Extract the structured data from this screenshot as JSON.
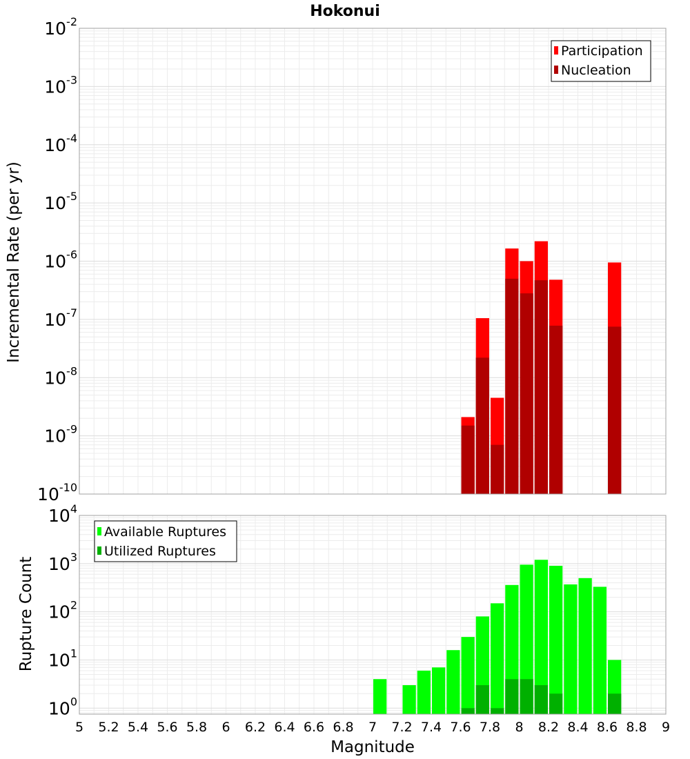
{
  "chart_data": [
    {
      "type": "bar",
      "title": "Hokonui",
      "ylabel": "Incremental Rate (per yr)",
      "yscale": "log",
      "ylim": [
        1e-10,
        0.01
      ],
      "xlim": [
        5,
        9
      ],
      "y_tick_exponents": [
        -2,
        -3,
        -4,
        -5,
        -6,
        -7,
        -8,
        -9,
        -10
      ],
      "legend_position": "top-right",
      "bin_width": 0.1,
      "colors": {
        "Participation": "#ff0000",
        "Nucleation": "#b00000"
      },
      "series": [
        {
          "name": "Participation",
          "x": [
            7.65,
            7.75,
            7.85,
            7.95,
            8.05,
            8.15,
            8.25,
            8.65
          ],
          "values": [
            2.1e-09,
            1.05e-07,
            4.5e-09,
            1.65e-06,
            1e-06,
            2.2e-06,
            4.8e-07,
            9.5e-07
          ]
        },
        {
          "name": "Nucleation",
          "x": [
            7.65,
            7.75,
            7.85,
            7.95,
            8.05,
            8.15,
            8.25,
            8.65
          ],
          "values": [
            1.5e-09,
            2.2e-08,
            7e-10,
            5e-07,
            2.8e-07,
            4.7e-07,
            7.8e-08,
            7.5e-08
          ]
        }
      ]
    },
    {
      "type": "bar",
      "ylabel": "Rupture Count",
      "xlabel": "Magnitude",
      "yscale": "log",
      "ylim": [
        0.75,
        10000
      ],
      "xlim": [
        5,
        9
      ],
      "y_tick_exponents": [
        0,
        1,
        2,
        3,
        4
      ],
      "x_ticks": [
        "5",
        "5.2",
        "5.4",
        "5.6",
        "5.8",
        "6",
        "6.2",
        "6.4",
        "6.6",
        "6.8",
        "7",
        "7.2",
        "7.4",
        "7.6",
        "7.8",
        "8",
        "8.2",
        "8.4",
        "8.6",
        "8.8",
        "9"
      ],
      "legend_position": "top-left",
      "bin_width": 0.1,
      "colors": {
        "Available Ruptures": "#00ff00",
        "Utilized Ruptures": "#00b000"
      },
      "series": [
        {
          "name": "Available Ruptures",
          "x": [
            7.05,
            7.25,
            7.35,
            7.45,
            7.55,
            7.65,
            7.75,
            7.85,
            7.95,
            8.05,
            8.15,
            8.25,
            8.35,
            8.45,
            8.55,
            8.65
          ],
          "values": [
            4,
            3,
            6,
            7,
            16,
            30,
            80,
            150,
            360,
            950,
            1200,
            900,
            370,
            500,
            330,
            10
          ]
        },
        {
          "name": "Utilized Ruptures",
          "x": [
            7.65,
            7.75,
            7.85,
            7.95,
            8.05,
            8.15,
            8.25,
            8.65
          ],
          "values": [
            1,
            3,
            1,
            4,
            4,
            3,
            2,
            2
          ]
        }
      ]
    }
  ],
  "axis_base_label": "10"
}
